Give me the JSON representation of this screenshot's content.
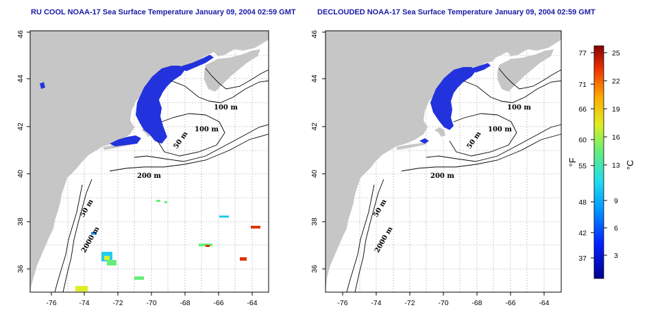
{
  "maps": [
    {
      "id": "left",
      "title": "RU COOL NOAA-17 Sea Surface Temperature January 09, 2004 02:59 GMT",
      "xticks": [
        "-76",
        "-74",
        "-72",
        "-70",
        "-68",
        "-66",
        "-64"
      ],
      "yticks": [
        "36",
        "38",
        "40",
        "42",
        "44",
        "46"
      ],
      "contour_labels": [
        "100 m",
        "100 m",
        "50 m",
        "200 m",
        "50 m",
        "2000 m"
      ]
    },
    {
      "id": "right",
      "title": "DECLOUDED NOAA-17 Sea Surface Temperature January 09, 2004 02:59 GMT",
      "xticks": [
        "-76",
        "-74",
        "-72",
        "-70",
        "-68",
        "-66",
        "-64"
      ],
      "yticks": [
        "36",
        "38",
        "40",
        "42",
        "44",
        "46"
      ],
      "contour_labels": [
        "100 m",
        "100 m",
        "50 m",
        "200 m",
        "50 m",
        "2000 m"
      ]
    }
  ],
  "colorbar": {
    "fahrenheit_ticks": [
      "77",
      "71",
      "66",
      "60",
      "55",
      "48",
      "42",
      "37"
    ],
    "celsius_ticks": [
      "25",
      "22",
      "19",
      "16",
      "13",
      "9",
      "6",
      "3"
    ],
    "fahrenheit_label": "°F",
    "celsius_label": "°C"
  },
  "colors": {
    "land": "#c6c6c6",
    "ocean": "#ffffff",
    "title": "#1a1aa6",
    "cold_water": "#2233dd"
  }
}
